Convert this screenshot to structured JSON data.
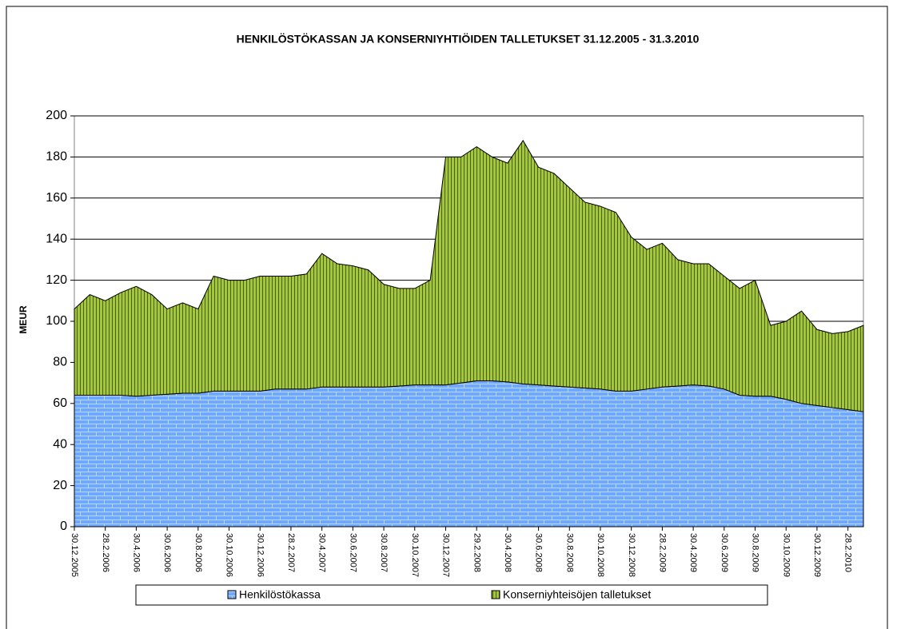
{
  "chart_data": {
    "type": "stacked_area",
    "title": "HENKILÖSTÖKASSAN JA KONSERNIYHTIÖIDEN TALLETUKSET 31.12.2005 - 31.3.2010",
    "y_label": "MEUR",
    "categories": [
      "30.12.2005",
      null,
      "28.2.2006",
      null,
      "30.4.2006",
      null,
      "30.6.2006",
      null,
      "30.8.2006",
      null,
      "30.10.2006",
      null,
      "30.12.2006",
      null,
      "28.2.2007",
      null,
      "30.4.2007",
      null,
      "30.6.2007",
      null,
      "30.8.2007",
      null,
      "30.10.2007",
      null,
      "30.12.2007",
      null,
      "29.2.2008",
      null,
      "30.4.2008",
      null,
      "30.6.2008",
      null,
      "30.8.2008",
      null,
      "30.10.2008",
      null,
      "30.12.2008",
      null,
      "28.2.2009",
      null,
      "30.4.2009",
      null,
      "30.6.2009",
      null,
      "30.8.2009",
      null,
      "30.10.2009",
      null,
      "30.12.2009",
      null,
      "28.2.2010",
      null
    ],
    "series": [
      {
        "name": "Henkilöstökassa",
        "color": "#6fa8ff",
        "values": [
          64,
          64,
          64,
          64,
          63.5,
          64,
          64.5,
          65,
          65,
          66,
          66,
          66,
          66,
          67,
          67,
          67,
          68,
          68,
          68,
          68,
          68,
          68.5,
          69,
          69,
          69,
          70,
          71,
          71,
          70.5,
          69.5,
          69,
          68.5,
          68,
          67.5,
          67,
          66,
          66,
          67,
          68,
          68.5,
          69,
          68.5,
          67,
          64,
          63.5,
          63.5,
          62,
          60,
          59,
          58,
          57,
          56
        ]
      },
      {
        "name": "Konserniyhteisöjen talletukset",
        "color": "#a4c639",
        "values": [
          42,
          49,
          46,
          50,
          53.5,
          49,
          41.5,
          44,
          41,
          56,
          54,
          54,
          56,
          55,
          55,
          56,
          65,
          60,
          59,
          57,
          50,
          47.5,
          47,
          51,
          111,
          110,
          114,
          109,
          106.5,
          118.5,
          106,
          103.5,
          97,
          90.5,
          89,
          87,
          75,
          68,
          70,
          61.5,
          59,
          59.5,
          55,
          52,
          56.5,
          34.5,
          38,
          45,
          37,
          36,
          38,
          42
        ]
      }
    ],
    "ylim": [
      0,
      200
    ],
    "yticks": [
      0,
      20,
      40,
      60,
      80,
      100,
      120,
      140,
      160,
      180,
      200
    ],
    "grid": true
  }
}
